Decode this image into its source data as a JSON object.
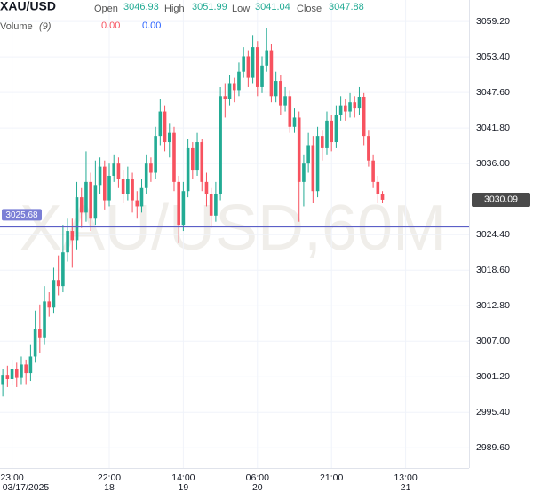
{
  "chart_data": {
    "type": "candlestick",
    "symbol": "XAU/USD",
    "watermark": "XAU/USD,60M",
    "ohlc_legend": [
      {
        "name": "Open",
        "value": 3046.93
      },
      {
        "name": "High",
        "value": 3051.99
      },
      {
        "name": "Low",
        "value": 3041.04
      },
      {
        "name": "Close",
        "value": 3047.88
      }
    ],
    "volume_legend": {
      "name": "Volume",
      "param": "(9)",
      "values": [
        {
          "value": 0,
          "label": "0.00"
        },
        {
          "value": 0,
          "label": "0.00"
        }
      ]
    },
    "up_color": "#22ab94",
    "down_color": "#f7525f",
    "candles": [
      [
        3000.0,
        3002.5,
        2998.0,
        3001.5
      ],
      [
        3001.5,
        3003.0,
        2999.5,
        3000.8
      ],
      [
        3000.8,
        3004.0,
        2999.8,
        3002.5
      ],
      [
        3002.5,
        3003.5,
        2999.5,
        3001.0
      ],
      [
        3001.0,
        3004.5,
        3000.0,
        3003.2
      ],
      [
        3003.2,
        3004.0,
        3000.0,
        3001.8
      ],
      [
        3001.8,
        3006.5,
        3000.5,
        3004.5
      ],
      [
        3004.5,
        3012.0,
        3003.5,
        3009.0
      ],
      [
        3009.0,
        3013.0,
        3005.0,
        3007.5
      ],
      [
        3007.5,
        3016.0,
        3006.5,
        3013.5
      ],
      [
        3013.5,
        3015.0,
        3011.0,
        3012.5
      ],
      [
        3012.5,
        3019.0,
        3011.5,
        3017.0
      ],
      [
        3017.0,
        3021.0,
        3014.5,
        3016.0
      ],
      [
        3016.0,
        3026.0,
        3015.0,
        3021.5
      ],
      [
        3021.5,
        3027.0,
        3020.0,
        3025.0
      ],
      [
        3025.0,
        3027.0,
        3019.0,
        3023.5
      ],
      [
        3023.5,
        3033.0,
        3022.0,
        3030.5
      ],
      [
        3030.5,
        3032.0,
        3025.5,
        3028.0
      ],
      [
        3028.0,
        3038.0,
        3026.5,
        3033.0
      ],
      [
        3033.0,
        3034.5,
        3025.0,
        3027.0
      ],
      [
        3027.0,
        3036.5,
        3026.0,
        3032.5
      ],
      [
        3032.5,
        3037.0,
        3031.0,
        3035.5
      ],
      [
        3035.5,
        3036.5,
        3028.5,
        3030.0
      ],
      [
        3030.0,
        3036.0,
        3029.0,
        3034.0
      ],
      [
        3034.0,
        3037.5,
        3033.0,
        3036.0
      ],
      [
        3036.0,
        3037.0,
        3032.0,
        3033.5
      ],
      [
        3033.5,
        3035.0,
        3029.5,
        3031.0
      ],
      [
        3031.0,
        3035.5,
        3030.0,
        3033.5
      ],
      [
        3033.5,
        3034.5,
        3028.0,
        3030.0
      ],
      [
        3030.0,
        3031.5,
        3027.0,
        3029.0
      ],
      [
        3029.0,
        3033.5,
        3028.0,
        3032.0
      ],
      [
        3032.0,
        3037.5,
        3031.0,
        3036.0
      ],
      [
        3036.0,
        3037.0,
        3033.0,
        3034.5
      ],
      [
        3034.5,
        3042.0,
        3033.5,
        3040.5
      ],
      [
        3040.5,
        3046.5,
        3039.0,
        3044.5
      ],
      [
        3044.5,
        3045.5,
        3038.0,
        3039.5
      ],
      [
        3039.5,
        3042.5,
        3037.0,
        3041.0
      ],
      [
        3041.0,
        3042.0,
        3031.5,
        3033.0
      ],
      [
        3033.0,
        3034.0,
        3023.0,
        3026.0
      ],
      [
        3026.0,
        3033.0,
        3025.0,
        3031.5
      ],
      [
        3031.5,
        3040.0,
        3030.5,
        3038.5
      ],
      [
        3038.5,
        3039.5,
        3033.5,
        3035.0
      ],
      [
        3035.0,
        3041.0,
        3034.0,
        3039.5
      ],
      [
        3039.5,
        3040.0,
        3031.5,
        3033.0
      ],
      [
        3033.0,
        3034.5,
        3029.0,
        3031.0
      ],
      [
        3031.0,
        3032.0,
        3025.5,
        3027.5
      ],
      [
        3027.5,
        3033.0,
        3026.5,
        3031.0
      ],
      [
        3031.0,
        3048.5,
        3030.0,
        3047.0
      ],
      [
        3047.0,
        3049.0,
        3043.5,
        3046.5
      ],
      [
        3046.5,
        3050.5,
        3045.5,
        3049.0
      ],
      [
        3049.0,
        3050.0,
        3046.0,
        3048.0
      ],
      [
        3048.0,
        3052.5,
        3047.0,
        3051.0
      ],
      [
        3051.0,
        3055.0,
        3050.0,
        3053.5
      ],
      [
        3053.5,
        3054.5,
        3048.5,
        3050.0
      ],
      [
        3050.0,
        3057.0,
        3049.0,
        3055.0
      ],
      [
        3055.0,
        3056.0,
        3047.0,
        3048.5
      ],
      [
        3048.5,
        3053.5,
        3047.5,
        3052.0
      ],
      [
        3052.0,
        3058.2,
        3051.0,
        3054.5
      ],
      [
        3054.5,
        3055.5,
        3046.0,
        3047.0
      ],
      [
        3047.0,
        3051.0,
        3046.0,
        3049.5
      ],
      [
        3049.5,
        3050.5,
        3044.0,
        3045.5
      ],
      [
        3045.5,
        3048.5,
        3044.5,
        3047.0
      ],
      [
        3047.0,
        3048.0,
        3041.0,
        3042.0
      ],
      [
        3042.0,
        3045.0,
        3041.0,
        3043.5
      ],
      [
        3043.5,
        3044.5,
        3026.5,
        3033.0
      ],
      [
        3033.0,
        3037.5,
        3029.0,
        3036.0
      ],
      [
        3036.0,
        3041.0,
        3034.5,
        3039.0
      ],
      [
        3039.0,
        3040.5,
        3029.5,
        3031.5
      ],
      [
        3031.5,
        3042.0,
        3030.5,
        3040.5
      ],
      [
        3040.5,
        3041.5,
        3036.5,
        3038.5
      ],
      [
        3038.5,
        3044.5,
        3037.5,
        3043.0
      ],
      [
        3043.0,
        3044.0,
        3038.0,
        3039.5
      ],
      [
        3039.5,
        3045.5,
        3038.5,
        3044.0
      ],
      [
        3044.0,
        3047.0,
        3043.0,
        3045.5
      ],
      [
        3045.5,
        3046.5,
        3043.0,
        3044.5
      ],
      [
        3044.5,
        3047.5,
        3043.5,
        3046.0
      ],
      [
        3046.0,
        3047.0,
        3043.5,
        3045.0
      ],
      [
        3045.0,
        3048.5,
        3044.0,
        3046.9
      ],
      [
        3046.9,
        3047.5,
        3039.0,
        3040.5
      ],
      [
        3040.5,
        3041.5,
        3035.5,
        3036.5
      ],
      [
        3036.5,
        3037.5,
        3032.0,
        3033.0
      ],
      [
        3033.0,
        3034.0,
        3029.5,
        3031.0
      ],
      [
        3031.0,
        3031.5,
        3029.5,
        3030.09
      ]
    ],
    "xlim": [
      -0.6,
      100.7
    ],
    "xticks": [
      {
        "value": 2,
        "label": "23:00"
      },
      {
        "value": 23,
        "label": "22:00"
      },
      {
        "value": 39,
        "label": "14:00"
      },
      {
        "value": 55,
        "label": "06:00"
      },
      {
        "value": 71,
        "label": "21:00"
      },
      {
        "value": 87,
        "label": "13:00"
      }
    ],
    "xtick_sublabels": [
      "03/17/2025",
      "18",
      "19",
      "20",
      null,
      "21"
    ],
    "ylim": [
      2986.3,
      3062.7
    ],
    "yticks": [
      {
        "value": 3059.2,
        "label": "3059.20"
      },
      {
        "value": 3053.4,
        "label": "3053.40"
      },
      {
        "value": 3047.6,
        "label": "3047.60"
      },
      {
        "value": 3041.8,
        "label": "3041.80"
      },
      {
        "value": 3036,
        "label": "3036.00"
      },
      {
        "value": 3024.4,
        "label": "3024.40"
      },
      {
        "value": 3018.6,
        "label": "3018.60"
      },
      {
        "value": 3012.8,
        "label": "3012.80"
      },
      {
        "value": 3007,
        "label": "3007.00"
      },
      {
        "value": 3001.2,
        "label": "3001.20"
      },
      {
        "value": 2995.4,
        "label": "2995.40"
      },
      {
        "value": 2989.6,
        "label": "2989.60"
      }
    ],
    "current_price": 3030.09,
    "price_line": {
      "value": 3025.68,
      "color": "#5b5fc7"
    },
    "grid": true
  }
}
